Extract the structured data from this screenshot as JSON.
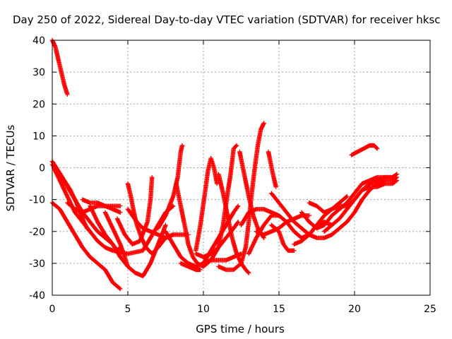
{
  "chart_data": {
    "type": "scatter",
    "title": "Day 250 of 2022, Sidereal Day-to-day VTEC variation (SDTVAR) for receiver hksc",
    "xlabel": "GPS time / hours",
    "ylabel": "SDTVAR / TECUs",
    "xlim": [
      0,
      25
    ],
    "ylim": [
      -40,
      40
    ],
    "xticks": [
      "0",
      "5",
      "10",
      "15",
      "20",
      "25"
    ],
    "yticks": [
      "-40",
      "-30",
      "-20",
      "-10",
      "0",
      "10",
      "20",
      "30",
      "40"
    ],
    "grid": true,
    "marker": "+",
    "color": "#ff0000",
    "series": [
      {
        "name": "trace-1",
        "points": [
          [
            0.0,
            40
          ],
          [
            0.2,
            38
          ],
          [
            0.4,
            34
          ],
          [
            0.6,
            30
          ],
          [
            0.8,
            26
          ],
          [
            1.0,
            23
          ]
        ]
      },
      {
        "name": "trace-2",
        "points": [
          [
            0.0,
            1
          ],
          [
            0.3,
            -1
          ],
          [
            0.6,
            -3
          ],
          [
            1.0,
            -6
          ],
          [
            1.5,
            -10
          ],
          [
            2.0,
            -14
          ],
          [
            2.5,
            -17
          ],
          [
            3.0,
            -20
          ],
          [
            3.5,
            -22
          ],
          [
            4.0,
            -24
          ],
          [
            4.3,
            -26
          ],
          [
            4.5,
            -25
          ]
        ]
      },
      {
        "name": "trace-3",
        "points": [
          [
            0.0,
            2
          ],
          [
            0.4,
            -1
          ],
          [
            0.8,
            -4
          ],
          [
            1.2,
            -7
          ],
          [
            1.6,
            -11
          ],
          [
            2.0,
            -16
          ],
          [
            2.3,
            -19
          ]
        ]
      },
      {
        "name": "trace-4",
        "points": [
          [
            0.0,
            -11
          ],
          [
            0.5,
            -13
          ],
          [
            1.0,
            -17
          ],
          [
            1.5,
            -21
          ],
          [
            2.0,
            -25
          ],
          [
            2.5,
            -28
          ],
          [
            3.0,
            -30
          ],
          [
            3.5,
            -32
          ],
          [
            4.0,
            -36
          ],
          [
            4.5,
            -38
          ]
        ]
      },
      {
        "name": "trace-5",
        "points": [
          [
            0.1,
            0
          ],
          [
            0.5,
            -4
          ],
          [
            1.0,
            -9
          ],
          [
            1.5,
            -14
          ],
          [
            2.0,
            -17
          ],
          [
            2.5,
            -20
          ],
          [
            3.0,
            -23
          ],
          [
            3.5,
            -25
          ],
          [
            4.0,
            -26
          ],
          [
            5.0,
            -27
          ],
          [
            6.0,
            -26
          ],
          [
            6.5,
            -22
          ],
          [
            7.0,
            -18
          ],
          [
            7.5,
            -14
          ],
          [
            8.0,
            -12
          ]
        ]
      },
      {
        "name": "trace-6",
        "points": [
          [
            1.0,
            -11
          ],
          [
            1.5,
            -13
          ],
          [
            2.0,
            -14
          ],
          [
            2.5,
            -13
          ],
          [
            3.0,
            -12
          ],
          [
            3.5,
            -12
          ],
          [
            4.0,
            -12
          ],
          [
            4.5,
            -12
          ]
        ]
      },
      {
        "name": "trace-7",
        "points": [
          [
            2.0,
            -10
          ],
          [
            2.5,
            -11
          ],
          [
            3.0,
            -11
          ],
          [
            3.5,
            -12
          ],
          [
            4.0,
            -13
          ],
          [
            4.5,
            -14
          ]
        ]
      },
      {
        "name": "trace-8",
        "points": [
          [
            2.5,
            -12
          ],
          [
            3.0,
            -17
          ],
          [
            3.5,
            -21
          ],
          [
            4.0,
            -24
          ],
          [
            4.5,
            -28
          ],
          [
            5.0,
            -31
          ],
          [
            5.5,
            -33
          ],
          [
            6.0,
            -34
          ],
          [
            6.5,
            -30
          ],
          [
            7.0,
            -24
          ],
          [
            7.5,
            -18
          ]
        ]
      },
      {
        "name": "trace-9",
        "points": [
          [
            3.5,
            -14
          ],
          [
            4.0,
            -19
          ],
          [
            4.5,
            -24
          ],
          [
            4.8,
            -28
          ],
          [
            5.0,
            -31
          ]
        ]
      },
      {
        "name": "trace-10",
        "points": [
          [
            4.3,
            -16
          ],
          [
            4.8,
            -21
          ],
          [
            5.3,
            -24
          ],
          [
            5.8,
            -23
          ],
          [
            6.3,
            -17
          ],
          [
            6.5,
            -10
          ],
          [
            6.6,
            -3
          ]
        ]
      },
      {
        "name": "trace-11",
        "points": [
          [
            5.0,
            -5
          ],
          [
            5.2,
            -9
          ],
          [
            5.4,
            -14
          ],
          [
            5.6,
            -18
          ],
          [
            5.9,
            -22
          ],
          [
            6.2,
            -25
          ],
          [
            6.6,
            -27
          ],
          [
            7.0,
            -25
          ],
          [
            7.5,
            -22
          ],
          [
            8.0,
            -21
          ],
          [
            8.5,
            -21
          ],
          [
            9.0,
            -21
          ]
        ]
      },
      {
        "name": "trace-12",
        "points": [
          [
            5.0,
            -13
          ],
          [
            5.3,
            -15
          ],
          [
            5.6,
            -17
          ],
          [
            6.0,
            -19
          ],
          [
            6.5,
            -20
          ],
          [
            7.0,
            -21
          ],
          [
            7.5,
            -22
          ],
          [
            8.0,
            -21
          ]
        ]
      },
      {
        "name": "trace-13",
        "points": [
          [
            7.0,
            -19
          ],
          [
            7.5,
            -15
          ],
          [
            8.0,
            -9
          ],
          [
            8.3,
            -3
          ],
          [
            8.5,
            5
          ],
          [
            8.6,
            7
          ]
        ]
      },
      {
        "name": "trace-14",
        "points": [
          [
            8.2,
            -5
          ],
          [
            8.5,
            -12
          ],
          [
            8.8,
            -19
          ],
          [
            9.0,
            -24
          ],
          [
            9.3,
            -28
          ],
          [
            9.6,
            -30
          ],
          [
            10.0,
            -31
          ],
          [
            10.5,
            -29
          ],
          [
            11.0,
            -25
          ],
          [
            11.3,
            -18
          ],
          [
            11.6,
            -8
          ],
          [
            11.8,
            -2
          ],
          [
            12.0,
            6
          ],
          [
            12.2,
            7
          ]
        ]
      },
      {
        "name": "trace-15",
        "points": [
          [
            7.5,
            -20
          ],
          [
            8.0,
            -24
          ],
          [
            8.5,
            -28
          ],
          [
            9.0,
            -30
          ],
          [
            9.5,
            -31
          ],
          [
            10.0,
            -30
          ],
          [
            10.5,
            -26
          ],
          [
            11.0,
            -22
          ],
          [
            11.5,
            -18
          ],
          [
            12.0,
            -14
          ],
          [
            12.3,
            -12
          ]
        ]
      },
      {
        "name": "trace-16",
        "points": [
          [
            8.5,
            -30
          ],
          [
            9.0,
            -31
          ],
          [
            9.5,
            -32
          ],
          [
            9.8,
            -32
          ]
        ]
      },
      {
        "name": "trace-17",
        "points": [
          [
            9.5,
            -26
          ],
          [
            9.8,
            -18
          ],
          [
            10.1,
            -8
          ],
          [
            10.3,
            -1
          ],
          [
            10.5,
            3
          ],
          [
            10.7,
            0
          ],
          [
            10.9,
            -5
          ]
        ]
      },
      {
        "name": "trace-18",
        "points": [
          [
            9.5,
            -27
          ],
          [
            10.0,
            -28
          ],
          [
            10.5,
            -27
          ],
          [
            11.0,
            -25
          ],
          [
            11.5,
            -22
          ],
          [
            12.0,
            -19
          ],
          [
            12.3,
            -17
          ]
        ]
      },
      {
        "name": "trace-19",
        "points": [
          [
            10.0,
            -30
          ],
          [
            10.5,
            -29
          ],
          [
            11.0,
            -29
          ],
          [
            11.5,
            -29
          ],
          [
            12.0,
            -28
          ],
          [
            12.5,
            -27
          ]
        ]
      },
      {
        "name": "trace-20",
        "points": [
          [
            11.0,
            -2
          ],
          [
            11.3,
            -8
          ],
          [
            11.6,
            -15
          ],
          [
            11.9,
            -22
          ],
          [
            12.2,
            -27
          ],
          [
            12.5,
            -30
          ],
          [
            12.8,
            -32
          ],
          [
            13.0,
            -33
          ]
        ]
      },
      {
        "name": "trace-21",
        "points": [
          [
            11.0,
            -31
          ],
          [
            11.5,
            -32
          ],
          [
            12.0,
            -32
          ],
          [
            12.5,
            -30
          ],
          [
            12.8,
            -25
          ],
          [
            13.0,
            -17
          ],
          [
            13.2,
            -8
          ],
          [
            13.4,
            0
          ],
          [
            13.6,
            7
          ],
          [
            13.8,
            12
          ],
          [
            14.0,
            14
          ]
        ]
      },
      {
        "name": "trace-22",
        "points": [
          [
            12.4,
            5
          ],
          [
            12.7,
            -2
          ],
          [
            13.0,
            -9
          ],
          [
            13.3,
            -15
          ],
          [
            13.6,
            -19
          ],
          [
            14.0,
            -22
          ]
        ]
      },
      {
        "name": "trace-23",
        "points": [
          [
            12.5,
            -18
          ],
          [
            13.0,
            -14
          ],
          [
            13.5,
            -13
          ],
          [
            14.0,
            -13
          ],
          [
            14.5,
            -14
          ],
          [
            15.0,
            -15
          ]
        ]
      },
      {
        "name": "trace-24",
        "points": [
          [
            13.0,
            -27
          ],
          [
            13.5,
            -22
          ],
          [
            14.0,
            -18
          ],
          [
            14.5,
            -15
          ],
          [
            15.0,
            -15
          ],
          [
            15.5,
            -17
          ],
          [
            16.0,
            -20
          ],
          [
            16.5,
            -22
          ],
          [
            17.0,
            -21
          ],
          [
            17.5,
            -18
          ],
          [
            18.0,
            -17
          ],
          [
            18.5,
            -18
          ]
        ]
      },
      {
        "name": "trace-25",
        "points": [
          [
            13.5,
            -20
          ],
          [
            14.0,
            -21
          ],
          [
            14.5,
            -20
          ],
          [
            15.0,
            -19
          ],
          [
            15.5,
            -17
          ],
          [
            16.0,
            -16
          ],
          [
            16.5,
            -15
          ],
          [
            17.0,
            -15
          ]
        ]
      },
      {
        "name": "trace-26",
        "points": [
          [
            14.3,
            5
          ],
          [
            14.6,
            -2
          ],
          [
            14.8,
            -6
          ]
        ]
      },
      {
        "name": "trace-27",
        "points": [
          [
            14.5,
            -18
          ],
          [
            15.0,
            -20
          ],
          [
            15.3,
            -24
          ],
          [
            15.6,
            -26
          ],
          [
            16.0,
            -26
          ]
        ]
      },
      {
        "name": "trace-28",
        "points": [
          [
            14.5,
            -8
          ],
          [
            15.0,
            -11
          ],
          [
            15.5,
            -14
          ],
          [
            16.0,
            -17
          ],
          [
            16.5,
            -19
          ],
          [
            17.0,
            -21
          ],
          [
            17.5,
            -22
          ],
          [
            18.0,
            -22
          ],
          [
            18.5,
            -21
          ],
          [
            19.0,
            -19
          ],
          [
            19.5,
            -17
          ],
          [
            20.0,
            -14
          ],
          [
            20.5,
            -10
          ],
          [
            21.0,
            -7
          ],
          [
            21.5,
            -5
          ],
          [
            22.0,
            -4
          ],
          [
            22.5,
            -4
          ],
          [
            22.8,
            -3
          ]
        ]
      },
      {
        "name": "trace-29",
        "points": [
          [
            16.0,
            -24
          ],
          [
            16.5,
            -23
          ],
          [
            17.0,
            -21
          ],
          [
            17.5,
            -18
          ],
          [
            18.0,
            -15
          ],
          [
            18.5,
            -13
          ],
          [
            19.0,
            -12
          ],
          [
            19.5,
            -12
          ],
          [
            20.0,
            -10
          ],
          [
            20.5,
            -7
          ],
          [
            21.0,
            -6
          ],
          [
            21.5,
            -6
          ],
          [
            22.0,
            -5
          ],
          [
            22.5,
            -5
          ],
          [
            22.8,
            -4
          ]
        ]
      },
      {
        "name": "trace-30",
        "points": [
          [
            16.5,
            -14
          ],
          [
            17.0,
            -17
          ],
          [
            17.5,
            -19
          ],
          [
            18.0,
            -18
          ],
          [
            18.5,
            -15
          ],
          [
            19.0,
            -13
          ],
          [
            19.5,
            -11
          ],
          [
            20.0,
            -8
          ],
          [
            20.5,
            -5
          ],
          [
            21.0,
            -4
          ],
          [
            21.5,
            -3
          ],
          [
            22.0,
            -3
          ],
          [
            22.5,
            -3
          ],
          [
            22.8,
            -2
          ]
        ]
      },
      {
        "name": "trace-31",
        "points": [
          [
            17.0,
            -11
          ],
          [
            17.5,
            -12
          ],
          [
            18.0,
            -14
          ],
          [
            18.5,
            -13
          ],
          [
            19.0,
            -11
          ],
          [
            19.5,
            -9
          ]
        ]
      },
      {
        "name": "trace-32",
        "points": [
          [
            18.0,
            -20
          ],
          [
            18.5,
            -18
          ],
          [
            19.0,
            -16
          ],
          [
            19.5,
            -13
          ],
          [
            20.0,
            -10
          ],
          [
            20.5,
            -7
          ],
          [
            21.0,
            -5
          ],
          [
            21.5,
            -4
          ],
          [
            22.0,
            -3
          ],
          [
            22.5,
            -3
          ]
        ]
      },
      {
        "name": "trace-33",
        "points": [
          [
            19.8,
            4
          ],
          [
            20.2,
            5
          ],
          [
            20.6,
            6
          ],
          [
            21.0,
            7
          ],
          [
            21.3,
            7
          ],
          [
            21.5,
            6
          ]
        ]
      }
    ]
  }
}
